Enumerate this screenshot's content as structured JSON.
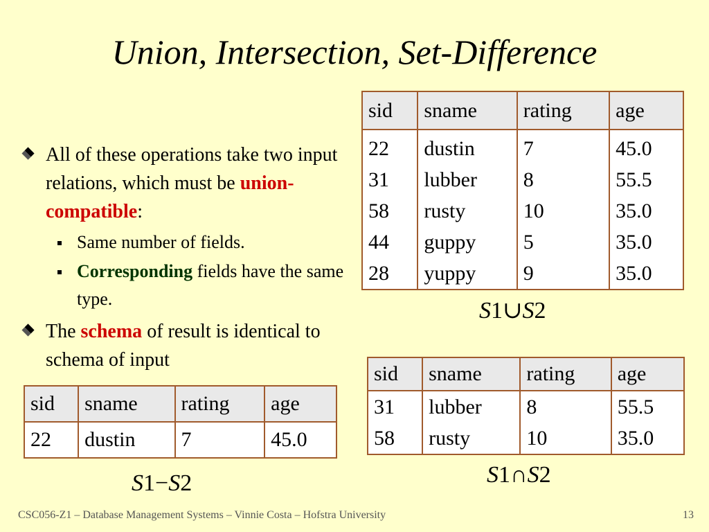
{
  "title": "Union, Intersection, Set-Difference",
  "bullets": {
    "b1_text": "All of these operations take two input relations, which must be ",
    "b1_highlight": "union-compatible",
    "b1_tail": ":",
    "sub1": "Same number of fields.",
    "sub2_bold": "Corresponding",
    "sub2_rest": " fields have the same type.",
    "b2_pre": "The ",
    "b2_highlight": "schema",
    "b2_post": " of result is identical to schema of input"
  },
  "columns": [
    "sid",
    "sname",
    "rating",
    "age"
  ],
  "union_table": {
    "sid": [
      "22",
      "31",
      "58",
      "44",
      "28"
    ],
    "sname": [
      "dustin",
      "lubber",
      "rusty",
      "guppy",
      "yuppy"
    ],
    "rating": [
      "7",
      "8",
      "10",
      "5",
      "9"
    ],
    "age": [
      "45.0",
      "55.5",
      "35.0",
      "35.0",
      "35.0"
    ]
  },
  "intersection_table": {
    "sid": [
      "31",
      "58"
    ],
    "sname": [
      "lubber",
      "rusty"
    ],
    "rating": [
      "8",
      "10"
    ],
    "age": [
      "55.5",
      "35.0"
    ]
  },
  "difference_table": {
    "sid": [
      "22"
    ],
    "sname": [
      "dustin"
    ],
    "rating": [
      "7"
    ],
    "age": [
      "45.0"
    ]
  },
  "ops": {
    "union": {
      "l": "S",
      "ln": "1",
      "sym": "∪",
      "r": "S",
      "rn": "2"
    },
    "inter": {
      "l": "S",
      "ln": "1",
      "sym": "∩",
      "r": "S",
      "rn": "2"
    },
    "diff": {
      "l": "S",
      "ln": "1",
      "sym": "−",
      "r": "S",
      "rn": "2"
    }
  },
  "footer": "CSC056-Z1 – Database Management Systems – Vinnie Costa – Hofstra University",
  "page_number": "13"
}
